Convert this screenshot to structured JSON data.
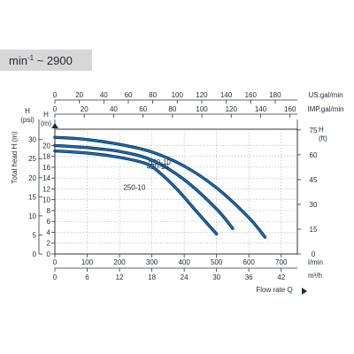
{
  "speed_label": {
    "prefix": "min",
    "exponent": "-1",
    "suffix": " ~ 2900"
  },
  "chart_data": {
    "type": "line",
    "units": {
      "top_1": "US.gal/min",
      "top_2": "IMP.gal/min",
      "bottom_1": "l/min",
      "bottom_2": "m³/h",
      "left_1": "H (psi)",
      "left_2": "H (m)",
      "right_1": "H (ft)"
    },
    "ylabel": "Total head  H (m)",
    "xlabel": "Flow rate  Q",
    "xlim": [
      0,
      750
    ],
    "ylim": [
      0,
      23
    ],
    "x_ticks_lmin": [
      "0",
      "100",
      "200",
      "300",
      "400",
      "500",
      "600",
      "700"
    ],
    "x_ticks_m3h": [
      "0",
      "6",
      "12",
      "18",
      "24",
      "30",
      "36",
      "42"
    ],
    "x_ticks_usgal": [
      "0",
      "20",
      "40",
      "60",
      "80",
      "100",
      "120",
      "140",
      "160",
      "180"
    ],
    "x_ticks_impgal": [
      "0",
      "20",
      "40",
      "60",
      "80",
      "100",
      "120",
      "140",
      "160"
    ],
    "y_ticks_m": [
      "0",
      "2",
      "4",
      "6",
      "8",
      "10",
      "12",
      "14",
      "16",
      "18",
      "20"
    ],
    "y_ticks_psi": [
      "0",
      "5",
      "10",
      "15",
      "20",
      "25",
      "30"
    ],
    "y_ticks_ft": [
      "0",
      "15",
      "30",
      "45",
      "60",
      "75"
    ],
    "colors": {
      "curve": "#1a6fb5",
      "curve_outline": "#0d2e52",
      "axes": "#333333"
    },
    "series": [
      {
        "name": "550-10",
        "x": [
          0,
          100,
          200,
          300,
          400,
          500,
          600,
          650
        ],
        "y": [
          21.5,
          21.1,
          20.2,
          18.8,
          16.2,
          12.2,
          6.7,
          3.1
        ]
      },
      {
        "name": "420-10",
        "x": [
          0,
          100,
          200,
          300,
          400,
          500,
          550
        ],
        "y": [
          20.0,
          19.6,
          18.9,
          17.3,
          13.7,
          8.3,
          4.7
        ]
      },
      {
        "name": "250-10",
        "x": [
          0,
          100,
          200,
          280,
          320,
          380,
          440,
          500
        ],
        "y": [
          19.0,
          18.6,
          17.8,
          16.7,
          15.2,
          11.8,
          7.7,
          3.7
        ]
      }
    ]
  }
}
